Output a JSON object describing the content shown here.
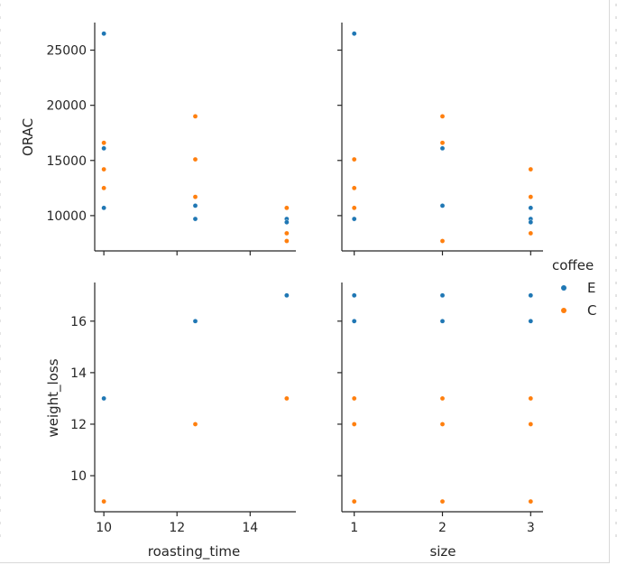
{
  "chart_data": {
    "type": "scatter",
    "kind": "pairplot",
    "hue_title": "coffee",
    "series": [
      {
        "name": "E",
        "color": "#1f77b4"
      },
      {
        "name": "C",
        "color": "#ff7f0e"
      }
    ],
    "x_vars": [
      {
        "name": "roasting_time",
        "label": "roasting_time",
        "lim": [
          9.75,
          15.25
        ],
        "ticks": [
          10,
          12,
          14
        ],
        "tick_labels": [
          "10",
          "12",
          "14"
        ]
      },
      {
        "name": "size",
        "label": "size",
        "lim": [
          0.86,
          3.14
        ],
        "ticks": [
          1,
          2,
          3
        ],
        "tick_labels": [
          "1",
          "2",
          "3"
        ]
      }
    ],
    "y_vars": [
      {
        "name": "ORAC",
        "label": "ORAC",
        "lim": [
          6800,
          27500
        ],
        "ticks": [
          10000,
          15000,
          20000,
          25000
        ],
        "tick_labels": [
          "10000",
          "15000",
          "20000",
          "25000"
        ]
      },
      {
        "name": "weight_loss",
        "label": "weight_loss",
        "lim": [
          8.6,
          17.5
        ],
        "ticks": [
          10,
          12,
          14,
          16
        ],
        "tick_labels": [
          "10",
          "12",
          "14",
          "16"
        ]
      }
    ],
    "panels": [
      {
        "x": "roasting_time",
        "y": "ORAC",
        "points": [
          {
            "x": 10,
            "y": 26500,
            "s": "E"
          },
          {
            "x": 10,
            "y": 16100,
            "s": "E"
          },
          {
            "x": 10,
            "y": 10700,
            "s": "E"
          },
          {
            "x": 10,
            "y": 16600,
            "s": "C"
          },
          {
            "x": 10,
            "y": 14200,
            "s": "C"
          },
          {
            "x": 10,
            "y": 12500,
            "s": "C"
          },
          {
            "x": 12.5,
            "y": 10900,
            "s": "E"
          },
          {
            "x": 12.5,
            "y": 9700,
            "s": "E"
          },
          {
            "x": 12.5,
            "y": 19000,
            "s": "C"
          },
          {
            "x": 12.5,
            "y": 15100,
            "s": "C"
          },
          {
            "x": 12.5,
            "y": 11700,
            "s": "C"
          },
          {
            "x": 15,
            "y": 9700,
            "s": "E"
          },
          {
            "x": 15,
            "y": 9400,
            "s": "E"
          },
          {
            "x": 15,
            "y": 10700,
            "s": "C"
          },
          {
            "x": 15,
            "y": 8400,
            "s": "C"
          },
          {
            "x": 15,
            "y": 7700,
            "s": "C"
          }
        ]
      },
      {
        "x": "size",
        "y": "ORAC",
        "points": [
          {
            "x": 1,
            "y": 26500,
            "s": "E"
          },
          {
            "x": 1,
            "y": 9700,
            "s": "E"
          },
          {
            "x": 1,
            "y": 15100,
            "s": "C"
          },
          {
            "x": 1,
            "y": 12500,
            "s": "C"
          },
          {
            "x": 1,
            "y": 10700,
            "s": "C"
          },
          {
            "x": 2,
            "y": 16100,
            "s": "E"
          },
          {
            "x": 2,
            "y": 10900,
            "s": "E"
          },
          {
            "x": 2,
            "y": 19000,
            "s": "C"
          },
          {
            "x": 2,
            "y": 16600,
            "s": "C"
          },
          {
            "x": 2,
            "y": 7700,
            "s": "C"
          },
          {
            "x": 3,
            "y": 10700,
            "s": "E"
          },
          {
            "x": 3,
            "y": 9700,
            "s": "E"
          },
          {
            "x": 3,
            "y": 9400,
            "s": "E"
          },
          {
            "x": 3,
            "y": 14200,
            "s": "C"
          },
          {
            "x": 3,
            "y": 11700,
            "s": "C"
          },
          {
            "x": 3,
            "y": 8400,
            "s": "C"
          }
        ]
      },
      {
        "x": "roasting_time",
        "y": "weight_loss",
        "points": [
          {
            "x": 10,
            "y": 13,
            "s": "E"
          },
          {
            "x": 10,
            "y": 9,
            "s": "C"
          },
          {
            "x": 12.5,
            "y": 16,
            "s": "E"
          },
          {
            "x": 12.5,
            "y": 12,
            "s": "C"
          },
          {
            "x": 15,
            "y": 17,
            "s": "E"
          },
          {
            "x": 15,
            "y": 13,
            "s": "C"
          }
        ]
      },
      {
        "x": "size",
        "y": "weight_loss",
        "points": [
          {
            "x": 1,
            "y": 17,
            "s": "E"
          },
          {
            "x": 1,
            "y": 16,
            "s": "E"
          },
          {
            "x": 1,
            "y": 13,
            "s": "C"
          },
          {
            "x": 1,
            "y": 12,
            "s": "C"
          },
          {
            "x": 1,
            "y": 9,
            "s": "C"
          },
          {
            "x": 2,
            "y": 17,
            "s": "E"
          },
          {
            "x": 2,
            "y": 16,
            "s": "E"
          },
          {
            "x": 2,
            "y": 13,
            "s": "C"
          },
          {
            "x": 2,
            "y": 12,
            "s": "C"
          },
          {
            "x": 2,
            "y": 9,
            "s": "C"
          },
          {
            "x": 3,
            "y": 17,
            "s": "E"
          },
          {
            "x": 3,
            "y": 16,
            "s": "E"
          },
          {
            "x": 3,
            "y": 13,
            "s": "C"
          },
          {
            "x": 3,
            "y": 12,
            "s": "C"
          },
          {
            "x": 3,
            "y": 9,
            "s": "C"
          }
        ]
      }
    ],
    "legend_position": "right"
  }
}
